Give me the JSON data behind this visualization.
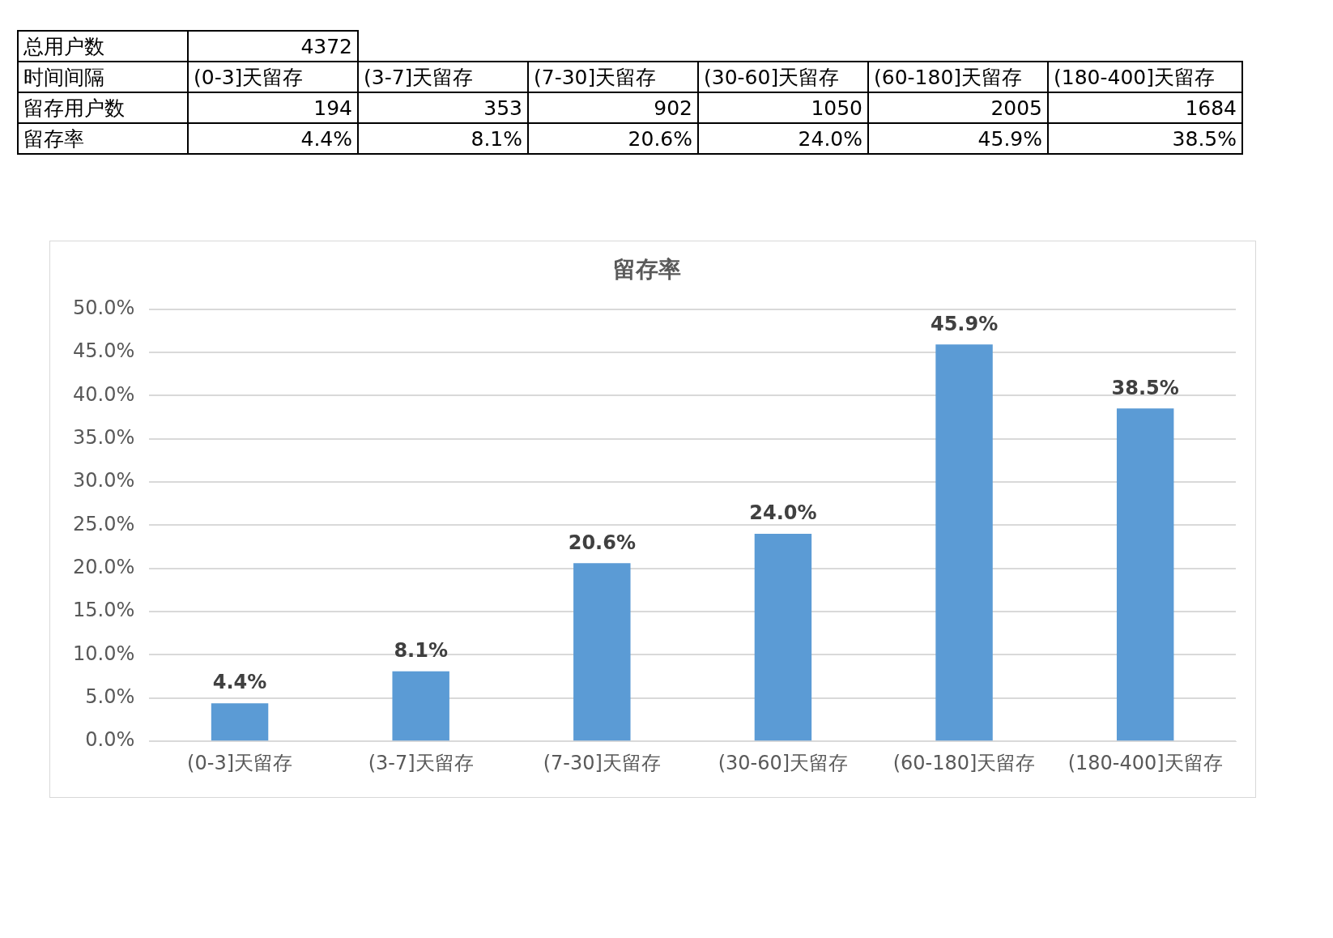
{
  "chart_data": [
    {
      "type": "other",
      "categories": [
        "(0-3]天留存",
        "(3-7]天留存",
        "(7-30]天留存",
        "(30-60]天留存",
        "(60-180]天留存",
        "(180-400]天留存"
      ],
      "annotations": [
        "总用户数",
        "4372",
        "时间间隔",
        "留存用户数",
        "194",
        "353",
        "902",
        "1050",
        "2005",
        "1684",
        "留存率",
        "4.4%",
        "8.1%",
        "20.6%",
        "24.0%",
        "45.9%",
        "38.5%"
      ]
    },
    {
      "type": "bar",
      "title": "留存率",
      "categories": [
        "(0-3]天留存",
        "(3-7]天留存",
        "(7-30]天留存",
        "(30-60]天留存",
        "(60-180]天留存",
        "(180-400]天留存"
      ],
      "values": [
        4.4,
        8.1,
        20.6,
        24.0,
        45.9,
        38.5
      ],
      "value_labels": [
        "4.4%",
        "8.1%",
        "20.6%",
        "24.0%",
        "45.9%",
        "38.5%"
      ],
      "color": "#5b9bd5",
      "ylim": [
        0,
        50
      ],
      "yticks": [
        {
          "value": 0,
          "label": "0.0%"
        },
        {
          "value": 5,
          "label": "5.0%"
        },
        {
          "value": 10,
          "label": "10.0%"
        },
        {
          "value": 15,
          "label": "15.0%"
        },
        {
          "value": 20,
          "label": "20.0%"
        },
        {
          "value": 25,
          "label": "25.0%"
        },
        {
          "value": 30,
          "label": "30.0%"
        },
        {
          "value": 35,
          "label": "35.0%"
        },
        {
          "value": 40,
          "label": "40.0%"
        },
        {
          "value": 45,
          "label": "45.0%"
        },
        {
          "value": 50,
          "label": "50.0%"
        }
      ],
      "grid": "y",
      "legend": false
    }
  ]
}
